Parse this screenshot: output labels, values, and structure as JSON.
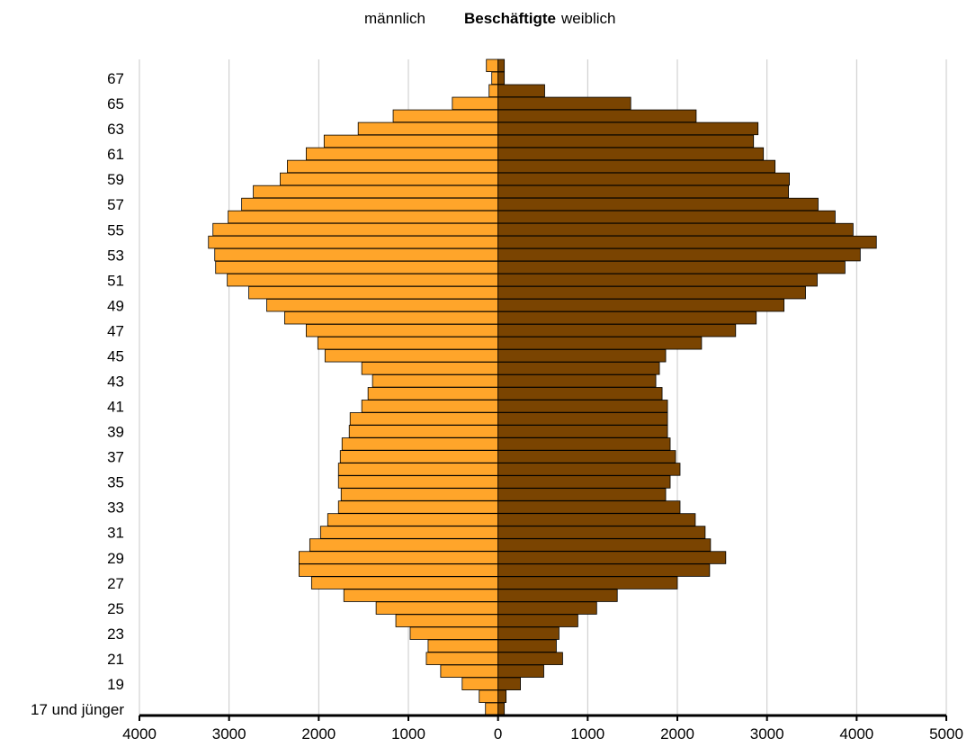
{
  "chart_data": {
    "type": "bar",
    "orientation": "horizontal-pyramid",
    "title_left": "männlich",
    "title_center": "Beschäftigte",
    "title_right": "weiblich",
    "x_ticks": [
      "4000",
      "3000",
      "2000",
      "1000",
      "0",
      "1000",
      "2000",
      "3000",
      "4000",
      "5000"
    ],
    "xlim": [
      -4000,
      5000
    ],
    "grid": true,
    "categories": [
      "17 und jünger",
      "18",
      "19",
      "20",
      "21",
      "22",
      "23",
      "24",
      "25",
      "26",
      "27",
      "28",
      "29",
      "30",
      "31",
      "32",
      "33",
      "34",
      "35",
      "36",
      "37",
      "38",
      "39",
      "40",
      "41",
      "42",
      "43",
      "44",
      "45",
      "46",
      "47",
      "48",
      "49",
      "50",
      "51",
      "52",
      "53",
      "54",
      "55",
      "56",
      "57",
      "58",
      "59",
      "60",
      "61",
      "62",
      "63",
      "64",
      "65",
      "66",
      "67",
      "68"
    ],
    "y_tick_labels": [
      "17 und jünger",
      "19",
      "21",
      "23",
      "25",
      "27",
      "29",
      "31",
      "33",
      "35",
      "37",
      "39",
      "41",
      "43",
      "45",
      "47",
      "49",
      "51",
      "53",
      "55",
      "57",
      "59",
      "61",
      "63",
      "65",
      "67"
    ],
    "series": [
      {
        "name": "männlich",
        "color": "#FFA52A",
        "values": [
          140,
          210,
          400,
          640,
          800,
          780,
          980,
          1140,
          1360,
          1720,
          2080,
          2220,
          2220,
          2100,
          1980,
          1900,
          1780,
          1750,
          1780,
          1780,
          1760,
          1740,
          1660,
          1650,
          1520,
          1450,
          1400,
          1520,
          1930,
          2010,
          2140,
          2380,
          2580,
          2780,
          3020,
          3150,
          3160,
          3230,
          3180,
          3010,
          2860,
          2730,
          2430,
          2350,
          2140,
          1940,
          1560,
          1170,
          510,
          100,
          70,
          130
        ]
      },
      {
        "name": "weiblich",
        "color": "#7A4401",
        "values": [
          70,
          90,
          250,
          510,
          720,
          650,
          680,
          890,
          1100,
          1330,
          2000,
          2360,
          2540,
          2370,
          2310,
          2200,
          2030,
          1870,
          1920,
          2030,
          1980,
          1920,
          1890,
          1890,
          1890,
          1830,
          1760,
          1800,
          1870,
          2270,
          2650,
          2880,
          3190,
          3430,
          3560,
          3870,
          4040,
          4220,
          3960,
          3760,
          3570,
          3240,
          3250,
          3090,
          2960,
          2850,
          2900,
          2210,
          1480,
          520,
          70,
          70
        ]
      }
    ]
  }
}
